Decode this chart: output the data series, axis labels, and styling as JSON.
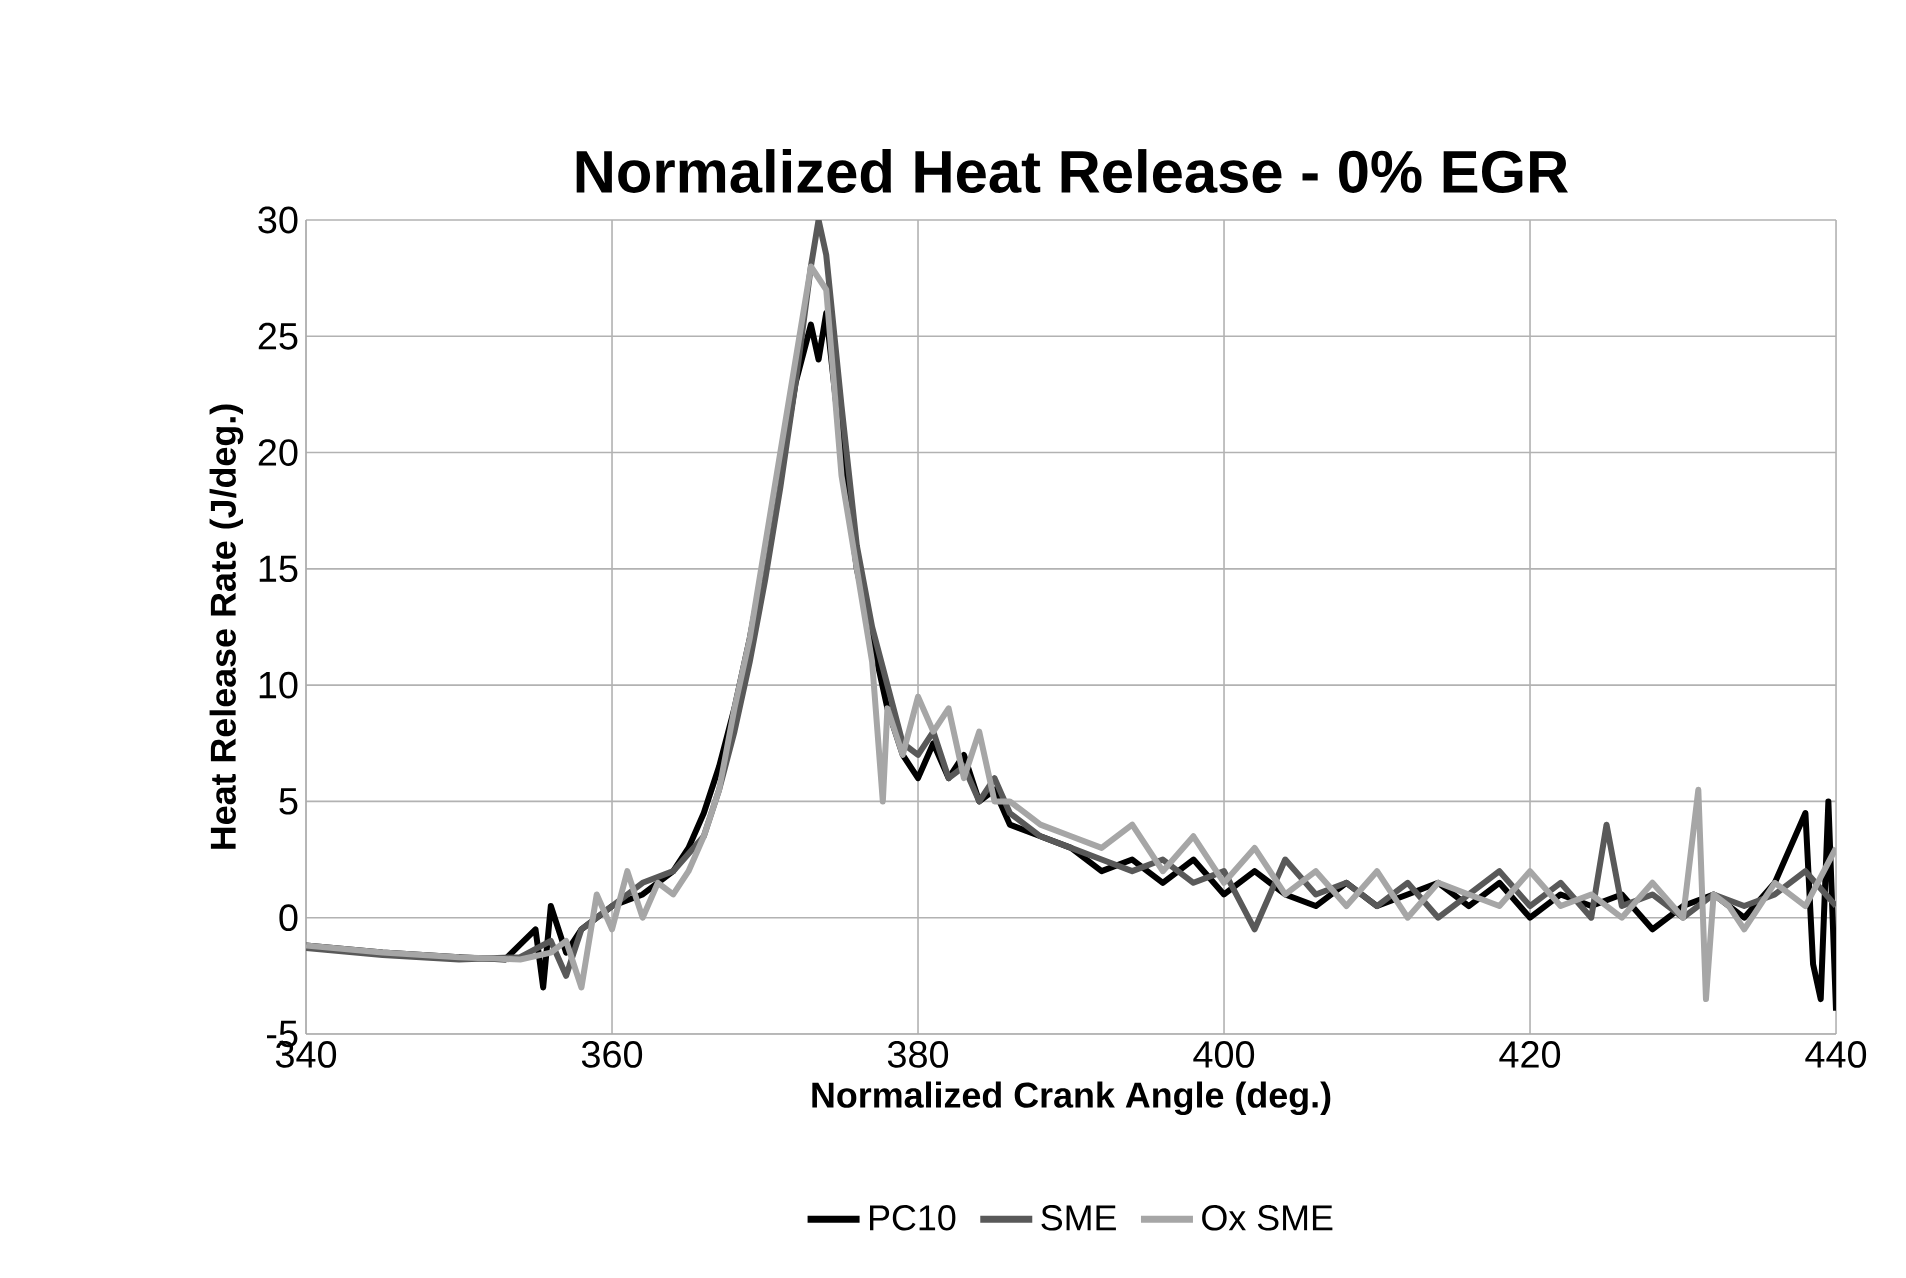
{
  "chart_data": {
    "type": "line",
    "title": "Normalized Heat Release - 0% EGR",
    "xlabel": "Normalized Crank Angle (deg.)",
    "ylabel": "Heat Release Rate (J/deg.)",
    "xlim": [
      340,
      440
    ],
    "ylim": [
      -5,
      30
    ],
    "xticks": [
      340,
      360,
      380,
      400,
      420,
      440
    ],
    "yticks": [
      -5,
      0,
      5,
      10,
      15,
      20,
      25,
      30
    ],
    "grid": true,
    "legend": "bottom",
    "marker": "none",
    "line_style": "solid",
    "series": [
      {
        "name": "PC10",
        "color": "#000000",
        "x": [
          340,
          345,
          350,
          353,
          355,
          355.5,
          356,
          357,
          358,
          360,
          362,
          364,
          365,
          366,
          367,
          368,
          369,
          370,
          371,
          372,
          373,
          373.5,
          374,
          375,
          376,
          377,
          378,
          379,
          380,
          381,
          382,
          383,
          384,
          385,
          386,
          388,
          390,
          392,
          394,
          396,
          398,
          400,
          402,
          404,
          406,
          408,
          410,
          412,
          414,
          416,
          418,
          420,
          422,
          424,
          426,
          428,
          430,
          432,
          434,
          436,
          437,
          438,
          438.5,
          439,
          439.5,
          440
        ],
        "values": [
          -1.2,
          -1.5,
          -1.7,
          -1.8,
          -0.5,
          -3,
          0.5,
          -1.5,
          -0.5,
          0.5,
          1,
          2,
          3,
          4.5,
          6.5,
          9,
          12,
          15.5,
          19,
          23,
          25.5,
          24,
          26,
          20,
          15,
          12,
          9,
          7,
          6,
          7.5,
          6,
          7,
          5,
          5.5,
          4,
          3.5,
          3,
          2,
          2.5,
          1.5,
          2.5,
          1,
          2,
          1,
          0.5,
          1.5,
          0.5,
          1,
          1.5,
          0.5,
          1.5,
          0,
          1,
          0.5,
          1,
          -0.5,
          0.5,
          1,
          0,
          1.5,
          3,
          4.5,
          -2,
          -3.5,
          5,
          -4
        ]
      },
      {
        "name": "SME",
        "color": "#595959",
        "x": [
          340,
          345,
          350,
          354,
          356,
          357,
          358,
          359,
          360,
          362,
          364,
          366,
          367,
          368,
          369,
          370,
          371,
          372,
          373,
          373.5,
          374,
          375,
          376,
          377,
          378,
          379,
          380,
          381,
          382,
          383,
          384,
          385,
          386,
          388,
          390,
          392,
          394,
          396,
          398,
          400,
          402,
          404,
          406,
          408,
          410,
          412,
          414,
          416,
          418,
          420,
          422,
          424,
          425,
          426,
          428,
          430,
          432,
          434,
          436,
          438,
          440
        ],
        "values": [
          -1.3,
          -1.6,
          -1.8,
          -1.7,
          -1,
          -2.5,
          -0.5,
          0,
          0.5,
          1.5,
          2,
          3.5,
          5.5,
          8,
          11,
          14.5,
          18.5,
          23,
          28,
          30,
          28.5,
          22,
          16,
          12.5,
          10,
          7.5,
          7,
          8,
          6,
          6.5,
          5,
          6,
          4.5,
          3.5,
          3,
          2.5,
          2,
          2.5,
          1.5,
          2,
          -0.5,
          2.5,
          1,
          1.5,
          0.5,
          1.5,
          0,
          1,
          2,
          0.5,
          1.5,
          0,
          4,
          0.5,
          1,
          0,
          1,
          0.5,
          1,
          2,
          0.5
        ]
      },
      {
        "name": "Ox SME",
        "color": "#a6a6a6",
        "x": [
          340,
          345,
          350,
          354,
          356,
          357,
          358,
          359,
          360,
          361,
          362,
          363,
          364,
          365,
          366,
          367,
          368,
          369,
          370,
          371,
          372,
          373,
          374,
          375,
          376,
          377,
          377.7,
          378,
          379,
          380,
          381,
          382,
          383,
          384,
          385,
          386,
          388,
          390,
          392,
          394,
          396,
          398,
          400,
          402,
          404,
          406,
          408,
          410,
          412,
          414,
          416,
          418,
          420,
          422,
          424,
          426,
          428,
          430,
          431,
          431.5,
          432,
          433,
          434,
          436,
          438,
          440
        ],
        "values": [
          -1.2,
          -1.5,
          -1.7,
          -1.8,
          -1.5,
          -1,
          -3,
          1,
          -0.5,
          2,
          0,
          1.5,
          1,
          2,
          3.5,
          5.5,
          9,
          12,
          16,
          20,
          24,
          28,
          27,
          19,
          15,
          11,
          5,
          9,
          7,
          9.5,
          8,
          9,
          6,
          8,
          5,
          5,
          4,
          3.5,
          3,
          4,
          2,
          3.5,
          1.5,
          3,
          1,
          2,
          0.5,
          2,
          0,
          1.5,
          1,
          0.5,
          2,
          0.5,
          1,
          0,
          1.5,
          0,
          5.5,
          -3.5,
          1,
          0.5,
          -0.5,
          1.5,
          0.5,
          3
        ]
      }
    ]
  }
}
